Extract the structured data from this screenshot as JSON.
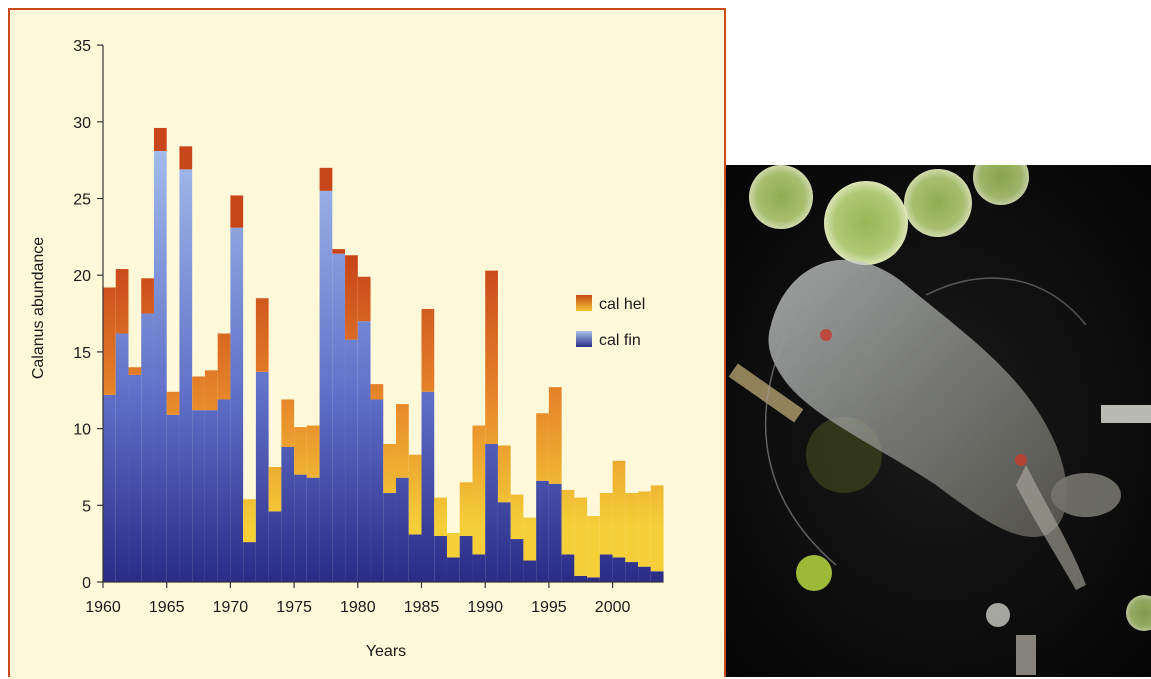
{
  "chart_data": {
    "type": "bar",
    "stacked": true,
    "xlabel": "Years",
    "ylabel": "Calanus abundance",
    "ylim": [
      0,
      35
    ],
    "yticks": [
      0,
      5,
      10,
      15,
      20,
      25,
      30,
      35
    ],
    "xticks": [
      1960,
      1965,
      1970,
      1975,
      1980,
      1985,
      1990,
      1995,
      2000
    ],
    "x": [
      1960,
      1961,
      1962,
      1963,
      1964,
      1965,
      1966,
      1967,
      1968,
      1969,
      1970,
      1971,
      1972,
      1973,
      1974,
      1975,
      1976,
      1977,
      1978,
      1979,
      1980,
      1981,
      1982,
      1983,
      1984,
      1985,
      1986,
      1987,
      1988,
      1989,
      1990,
      1991,
      1992,
      1993,
      1994,
      1995,
      1996,
      1997,
      1998,
      1999,
      2000,
      2001,
      2002,
      2003
    ],
    "series": [
      {
        "name": "cal fin",
        "values": [
          12.2,
          16.2,
          13.5,
          17.5,
          28.1,
          10.9,
          26.9,
          11.2,
          11.2,
          11.9,
          23.1,
          2.6,
          13.7,
          4.6,
          8.8,
          7.0,
          6.8,
          25.5,
          21.4,
          15.8,
          17.0,
          11.9,
          5.8,
          6.8,
          3.1,
          12.4,
          3.0,
          1.6,
          3.0,
          1.8,
          9.0,
          5.2,
          2.8,
          1.4,
          6.6,
          6.4,
          1.8,
          0.4,
          0.3,
          1.8,
          1.6,
          1.3,
          1.0,
          0.7
        ]
      },
      {
        "name": "cal hel",
        "values": [
          7.0,
          4.2,
          0.5,
          2.3,
          1.5,
          1.5,
          1.5,
          2.2,
          2.6,
          4.3,
          2.1,
          2.8,
          4.8,
          2.9,
          3.1,
          3.1,
          3.4,
          1.5,
          0.3,
          5.5,
          2.9,
          1.0,
          3.2,
          4.8,
          5.2,
          5.4,
          2.5,
          1.6,
          3.5,
          8.4,
          11.3,
          3.7,
          2.9,
          2.8,
          4.4,
          6.3,
          4.2,
          5.1,
          4.0,
          4.0,
          6.3,
          4.5,
          4.9,
          5.6
        ]
      }
    ],
    "legend_position": "right",
    "legend_colors": {
      "cal hel": "#e8922a",
      "cal fin": "#7b8fd4"
    }
  },
  "legend": [
    {
      "label": "cal hel",
      "swatch_top": "#c84a16",
      "swatch_bottom": "#f2c432"
    },
    {
      "label": "cal fin",
      "swatch_top": "#a8c2ec",
      "swatch_bottom": "#2a2f88"
    }
  ],
  "colors": {
    "panel_background": "#fff9da",
    "panel_border": "#cc4a1c",
    "fin_top": "#aac4ee",
    "fin_mid": "#5f6fc8",
    "fin_bottom": "#2a2c86",
    "hel_top": "#c8451a",
    "hel_mid": "#e88a2a",
    "hel_bottom": "#f4cf38"
  }
}
